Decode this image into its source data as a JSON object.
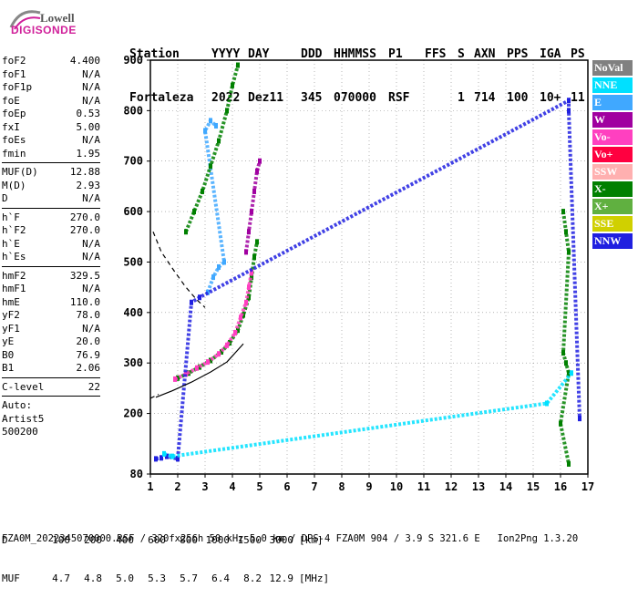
{
  "logo": {
    "line1": "Lowell",
    "line2": "DIGISONDE"
  },
  "header": {
    "labels": [
      "Station",
      "YYYY",
      "DAY",
      "DDD",
      "HHMMSS",
      "P1",
      "FFS",
      "S",
      "AXN",
      "PPS",
      "IGA",
      "PS"
    ],
    "values": [
      "Fortaleza",
      "2022",
      "Dez11",
      "345",
      "070000",
      "RSF",
      "",
      "1",
      "714",
      "100",
      "10+",
      "11"
    ]
  },
  "params_group1": [
    {
      "name": "foF2",
      "value": "4.400"
    },
    {
      "name": "foF1",
      "value": "N/A"
    },
    {
      "name": "foF1p",
      "value": "N/A"
    },
    {
      "name": "foE",
      "value": "N/A"
    },
    {
      "name": "foEp",
      "value": "0.53"
    },
    {
      "name": "fxI",
      "value": "5.00"
    },
    {
      "name": "foEs",
      "value": "N/A"
    },
    {
      "name": "fmin",
      "value": "1.95"
    }
  ],
  "params_group2": [
    {
      "name": "MUF(D)",
      "value": "12.88"
    },
    {
      "name": "M(D)",
      "value": "2.93"
    },
    {
      "name": "D",
      "value": "N/A"
    }
  ],
  "params_group3": [
    {
      "name": "h`F",
      "value": "270.0"
    },
    {
      "name": "h`F2",
      "value": "270.0"
    },
    {
      "name": "h`E",
      "value": "N/A"
    },
    {
      "name": "h`Es",
      "value": "N/A"
    }
  ],
  "params_group4": [
    {
      "name": "hmF2",
      "value": "329.5"
    },
    {
      "name": "hmF1",
      "value": "N/A"
    },
    {
      "name": "hmE",
      "value": "110.0"
    },
    {
      "name": "yF2",
      "value": "78.0"
    },
    {
      "name": "yF1",
      "value": "N/A"
    },
    {
      "name": "yE",
      "value": "20.0"
    },
    {
      "name": "B0",
      "value": "76.9"
    },
    {
      "name": "B1",
      "value": "2.06"
    }
  ],
  "params_group5": [
    {
      "name": "C-level",
      "value": "22"
    }
  ],
  "auto": {
    "line1": "Auto:",
    "line2": "Artist5",
    "line3": "500200"
  },
  "legend": [
    {
      "label": "NoVal",
      "color": "#808080"
    },
    {
      "label": "NNE",
      "color": "#00e0ff"
    },
    {
      "label": "E",
      "color": "#40a8ff"
    },
    {
      "label": "W",
      "color": "#a000a0"
    },
    {
      "label": "Vo-",
      "color": "#ff40c0"
    },
    {
      "label": "Vo+",
      "color": "#ff0040"
    },
    {
      "label": "SSW",
      "color": "#ffb0b0"
    },
    {
      "label": "X-",
      "color": "#008000"
    },
    {
      "label": "X+",
      "color": "#60b040"
    },
    {
      "label": "SSE",
      "color": "#d0d000"
    },
    {
      "label": "NNW",
      "color": "#2020e0"
    }
  ],
  "footer": {
    "d_label": "D",
    "d_values": [
      "100",
      "200",
      "400",
      "600",
      "800",
      "1000",
      "1500",
      "3000"
    ],
    "d_unit": "[km]",
    "muf_label": "MUF",
    "muf_values": [
      "4.7",
      "4.8",
      "5.0",
      "5.3",
      "5.7",
      "6.4",
      "8.2",
      "12.9"
    ],
    "muf_unit": "[MHz]",
    "info": "FZA0M_2022345070000.RSF / 320fx256h 50 kHz 5.0 km / DPS-4 FZA0M 904 / 3.9 S 321.6 E   Ion2Png 1.3.20"
  },
  "chart_data": {
    "type": "scatter",
    "xlim": [
      1,
      17
    ],
    "ylim": [
      80,
      900
    ],
    "xticks": [
      1,
      2,
      3,
      4,
      5,
      6,
      7,
      8,
      9,
      10,
      11,
      12,
      13,
      14,
      15,
      16,
      17
    ],
    "yticks": [
      80,
      200,
      300,
      400,
      500,
      600,
      700,
      800,
      900
    ],
    "grid": "dotted",
    "legend_position": "right",
    "profile_curve": [
      [
        1.2,
        232
      ],
      [
        1.8,
        245
      ],
      [
        2.5,
        262
      ],
      [
        3.2,
        282
      ],
      [
        3.8,
        302
      ],
      [
        4.1,
        320
      ],
      [
        4.3,
        332
      ],
      [
        4.4,
        338
      ]
    ],
    "dashed_curve": [
      [
        1.1,
        560
      ],
      [
        1.4,
        520
      ],
      [
        1.9,
        480
      ],
      [
        2.3,
        450
      ],
      [
        2.7,
        425
      ],
      [
        3.0,
        410
      ]
    ],
    "dashed_lower": [
      [
        1.0,
        230
      ],
      [
        1.3,
        238
      ]
    ],
    "traces": [
      {
        "name": "X-",
        "color": "#008000",
        "points": [
          [
            2.0,
            270
          ],
          [
            2.4,
            280
          ],
          [
            2.8,
            292
          ],
          [
            3.2,
            305
          ],
          [
            3.6,
            322
          ],
          [
            3.9,
            340
          ],
          [
            4.2,
            365
          ],
          [
            4.4,
            395
          ],
          [
            4.6,
            430
          ],
          [
            4.7,
            470
          ],
          [
            4.8,
            510
          ],
          [
            4.9,
            540
          ]
        ]
      },
      {
        "name": "Vo-",
        "color": "#ff40c0",
        "points": [
          [
            1.9,
            268
          ],
          [
            2.3,
            278
          ],
          [
            2.7,
            290
          ],
          [
            3.1,
            302
          ],
          [
            3.5,
            318
          ],
          [
            3.8,
            335
          ],
          [
            4.1,
            360
          ],
          [
            4.3,
            390
          ],
          [
            4.5,
            420
          ],
          [
            4.6,
            450
          ],
          [
            4.7,
            480
          ]
        ]
      },
      {
        "name": "W",
        "color": "#a000a0",
        "points": [
          [
            4.5,
            520
          ],
          [
            4.6,
            560
          ],
          [
            4.7,
            600
          ],
          [
            4.8,
            640
          ],
          [
            4.9,
            680
          ],
          [
            5.0,
            700
          ]
        ]
      },
      {
        "name": "E",
        "color": "#40a8ff",
        "points": [
          [
            3.1,
            440
          ],
          [
            3.3,
            470
          ],
          [
            3.5,
            490
          ],
          [
            3.7,
            500
          ],
          [
            3.0,
            760
          ],
          [
            3.2,
            780
          ],
          [
            3.4,
            770
          ]
        ]
      },
      {
        "name": "X-",
        "color": "#008000",
        "points": [
          [
            2.3,
            560
          ],
          [
            2.6,
            600
          ],
          [
            2.9,
            640
          ],
          [
            3.2,
            690
          ],
          [
            3.5,
            740
          ],
          [
            3.8,
            800
          ],
          [
            4.0,
            850
          ],
          [
            4.2,
            890
          ]
        ]
      },
      {
        "name": "X-",
        "color": "#008000",
        "points": [
          [
            16.1,
            600
          ],
          [
            16.2,
            560
          ],
          [
            16.3,
            520
          ],
          [
            16.1,
            320
          ],
          [
            16.2,
            300
          ],
          [
            16.3,
            280
          ],
          [
            16.0,
            180
          ],
          [
            16.3,
            100
          ]
        ]
      },
      {
        "name": "NNW",
        "color": "#2020e0",
        "points": [
          [
            1.2,
            110
          ],
          [
            1.4,
            112
          ],
          [
            1.6,
            115
          ],
          [
            2.0,
            110
          ],
          [
            2.5,
            420
          ],
          [
            2.8,
            430
          ],
          [
            16.3,
            820
          ],
          [
            16.3,
            800
          ],
          [
            16.7,
            190
          ]
        ]
      },
      {
        "name": "NNE",
        "color": "#00e0ff",
        "points": [
          [
            1.5,
            120
          ],
          [
            1.8,
            115
          ],
          [
            15.5,
            220
          ],
          [
            16.4,
            280
          ]
        ]
      }
    ]
  }
}
